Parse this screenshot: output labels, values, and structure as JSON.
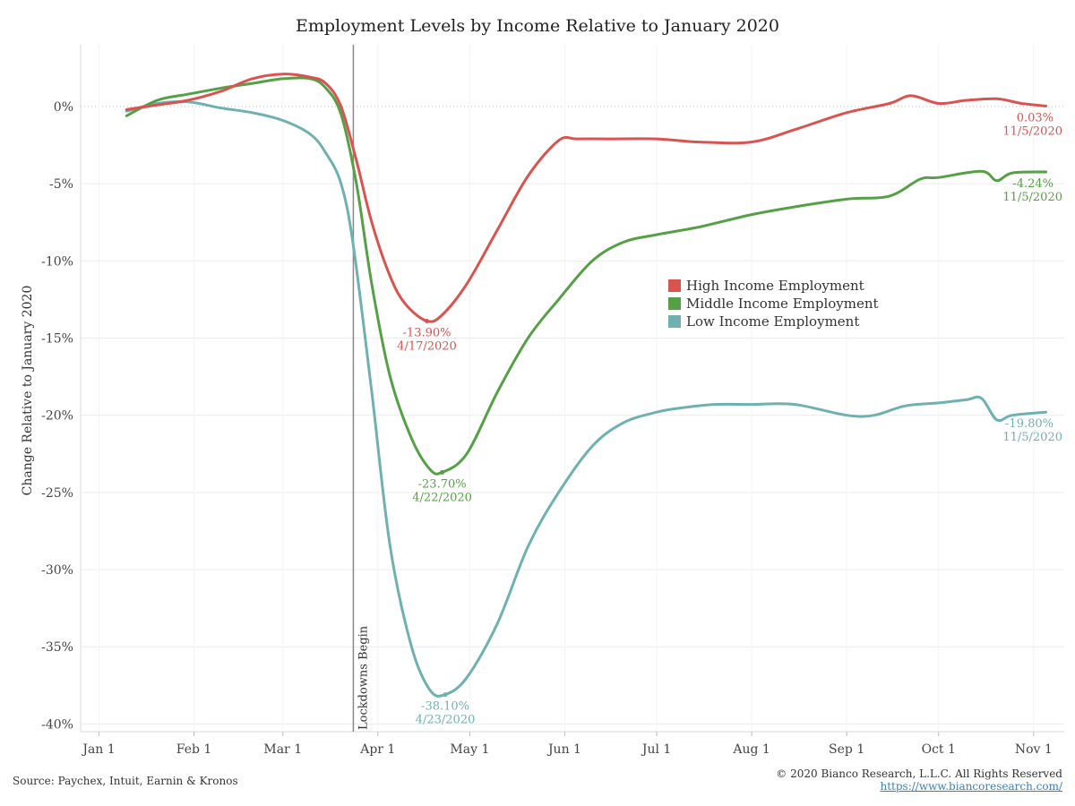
{
  "chart_data": {
    "type": "line",
    "title": "Employment Levels by Income Relative to January 2020",
    "ylabel": "Change Relative to January 2020",
    "xlabel": "",
    "ylim": [
      -40.5,
      4
    ],
    "yticks": [
      {
        "value": 0,
        "label": "0%"
      },
      {
        "value": -5,
        "label": "-5%"
      },
      {
        "value": -10,
        "label": "-10%"
      },
      {
        "value": -15,
        "label": "-15%"
      },
      {
        "value": -20,
        "label": "-20%"
      },
      {
        "value": -25,
        "label": "-25%"
      },
      {
        "value": -30,
        "label": "-30%"
      },
      {
        "value": -35,
        "label": "-35%"
      },
      {
        "value": -40,
        "label": "-40%"
      }
    ],
    "xticks": [
      {
        "date": "2020-01-01",
        "label": "Jan 1"
      },
      {
        "date": "2020-02-01",
        "label": "Feb 1"
      },
      {
        "date": "2020-03-01",
        "label": "Mar 1"
      },
      {
        "date": "2020-04-01",
        "label": "Apr 1"
      },
      {
        "date": "2020-05-01",
        "label": "May 1"
      },
      {
        "date": "2020-06-01",
        "label": "Jun 1"
      },
      {
        "date": "2020-07-01",
        "label": "Jul 1"
      },
      {
        "date": "2020-08-01",
        "label": "Aug 1"
      },
      {
        "date": "2020-09-01",
        "label": "Sep 1"
      },
      {
        "date": "2020-10-01",
        "label": "Oct 1"
      },
      {
        "date": "2020-11-01",
        "label": "Nov 1"
      }
    ],
    "xrange": [
      "2019-12-26",
      "2020-11-11"
    ],
    "grid": true,
    "legend_position": "center-right",
    "event_line": {
      "date": "2020-03-24",
      "label": "Lockdowns Begin"
    },
    "series": [
      {
        "name": "High Income Employment",
        "color": "#d9534f",
        "x": [
          "2020-01-10",
          "2020-01-20",
          "2020-01-30",
          "2020-02-10",
          "2020-02-20",
          "2020-03-01",
          "2020-03-10",
          "2020-03-15",
          "2020-03-20",
          "2020-03-25",
          "2020-03-30",
          "2020-04-05",
          "2020-04-10",
          "2020-04-17",
          "2020-04-22",
          "2020-04-30",
          "2020-05-10",
          "2020-05-20",
          "2020-05-30",
          "2020-06-05",
          "2020-06-15",
          "2020-07-01",
          "2020-07-15",
          "2020-08-01",
          "2020-08-15",
          "2020-09-01",
          "2020-09-15",
          "2020-09-22",
          "2020-10-01",
          "2020-10-10",
          "2020-10-20",
          "2020-10-28",
          "2020-11-05"
        ],
        "y": [
          -0.2,
          0.1,
          0.4,
          1.0,
          1.8,
          2.1,
          1.9,
          1.5,
          0.0,
          -3.5,
          -7.5,
          -11.0,
          -12.8,
          -13.9,
          -13.5,
          -11.5,
          -8.0,
          -4.5,
          -2.2,
          -2.1,
          -2.1,
          -2.1,
          -2.3,
          -2.3,
          -1.5,
          -0.4,
          0.2,
          0.7,
          0.2,
          0.4,
          0.5,
          0.2,
          0.03
        ],
        "end_label": "0.03%",
        "end_date": "11/5/2020",
        "min_label": "-13.90%",
        "min_date": "4/17/2020",
        "min_value": -13.9,
        "min_x": "2020-04-17"
      },
      {
        "name": "Middle Income Employment",
        "color": "#55a046",
        "x": [
          "2020-01-10",
          "2020-01-20",
          "2020-01-30",
          "2020-02-10",
          "2020-02-20",
          "2020-03-01",
          "2020-03-10",
          "2020-03-15",
          "2020-03-20",
          "2020-03-25",
          "2020-03-30",
          "2020-04-05",
          "2020-04-12",
          "2020-04-18",
          "2020-04-22",
          "2020-04-30",
          "2020-05-10",
          "2020-05-20",
          "2020-05-30",
          "2020-06-10",
          "2020-06-20",
          "2020-07-01",
          "2020-07-15",
          "2020-08-01",
          "2020-08-15",
          "2020-09-01",
          "2020-09-15",
          "2020-09-25",
          "2020-10-01",
          "2020-10-15",
          "2020-10-20",
          "2020-10-25",
          "2020-11-05"
        ],
        "y": [
          -0.6,
          0.4,
          0.8,
          1.2,
          1.5,
          1.8,
          1.8,
          1.2,
          -0.5,
          -5.0,
          -11.5,
          -17.5,
          -21.5,
          -23.5,
          -23.7,
          -22.5,
          -18.5,
          -15.0,
          -12.5,
          -10.0,
          -8.8,
          -8.3,
          -7.8,
          -7.0,
          -6.5,
          -6.0,
          -5.8,
          -4.7,
          -4.6,
          -4.2,
          -4.8,
          -4.3,
          -4.24
        ],
        "end_label": "-4.24%",
        "end_date": "11/5/2020",
        "min_label": "-23.70%",
        "min_date": "4/22/2020",
        "min_value": -23.7,
        "min_x": "2020-04-22"
      },
      {
        "name": "Low Income Employment",
        "color": "#6fb0b0",
        "x": [
          "2020-01-10",
          "2020-01-20",
          "2020-01-30",
          "2020-02-10",
          "2020-02-20",
          "2020-03-01",
          "2020-03-10",
          "2020-03-15",
          "2020-03-20",
          "2020-03-24",
          "2020-03-30",
          "2020-04-05",
          "2020-04-12",
          "2020-04-18",
          "2020-04-23",
          "2020-04-30",
          "2020-05-10",
          "2020-05-20",
          "2020-05-30",
          "2020-06-10",
          "2020-06-20",
          "2020-07-01",
          "2020-07-10",
          "2020-07-20",
          "2020-08-01",
          "2020-08-15",
          "2020-09-01",
          "2020-09-10",
          "2020-09-20",
          "2020-10-01",
          "2020-10-10",
          "2020-10-15",
          "2020-10-20",
          "2020-10-25",
          "2020-11-05"
        ],
        "y": [
          -0.3,
          0.2,
          0.3,
          -0.1,
          -0.4,
          -0.9,
          -1.8,
          -3.0,
          -5.0,
          -9.0,
          -18.5,
          -28.5,
          -35.0,
          -37.8,
          -38.1,
          -37.0,
          -33.5,
          -28.5,
          -25.0,
          -22.0,
          -20.5,
          -19.8,
          -19.5,
          -19.3,
          -19.3,
          -19.3,
          -20.0,
          -20.0,
          -19.4,
          -19.2,
          -19.0,
          -18.9,
          -20.3,
          -20.0,
          -19.8
        ],
        "end_label": "-19.80%",
        "end_date": "11/5/2020",
        "min_label": "-38.10%",
        "min_date": "4/23/2020",
        "min_value": -38.1,
        "min_x": "2020-04-23"
      }
    ]
  },
  "footer": {
    "source": "Source: Paychex, Intuit, Earnin & Kronos",
    "copyright": "© 2020 Bianco Research, L.L.C. All Rights Reserved",
    "url": "https://www.biancoresearch.com/"
  }
}
